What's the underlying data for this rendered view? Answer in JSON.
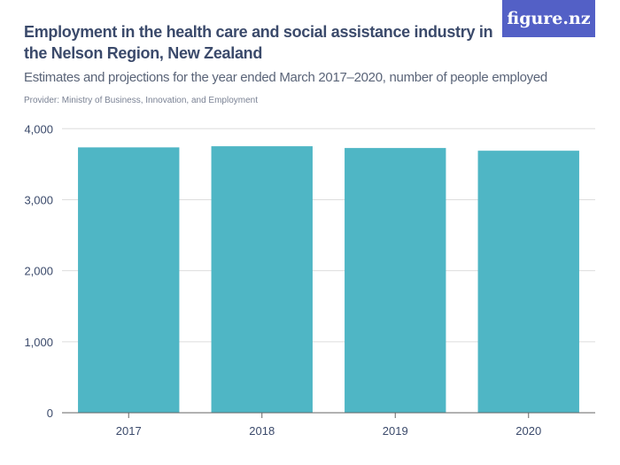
{
  "title": "Employment in the health care and social assistance industry in the Nelson Region, New Zealand",
  "subtitle": "Estimates and projections for the year ended March 2017–2020, number of people employed",
  "provider": "Provider: Ministry of Business, Innovation, and Employment",
  "logo": "figure.nz",
  "colors": {
    "bar": "#4fb6c5",
    "logo_bg": "#5360c6",
    "grid": "#dddddd"
  },
  "chart_data": {
    "type": "bar",
    "categories": [
      "2017",
      "2018",
      "2019",
      "2020"
    ],
    "values": [
      3737,
      3753,
      3728,
      3690
    ],
    "ylim": [
      0,
      4000
    ],
    "yticks": [
      0,
      1000,
      2000,
      3000,
      4000
    ],
    "ytick_labels": [
      "0",
      "1,000",
      "2,000",
      "3,000",
      "4,000"
    ],
    "grid": true,
    "xlabel": "",
    "ylabel": ""
  }
}
